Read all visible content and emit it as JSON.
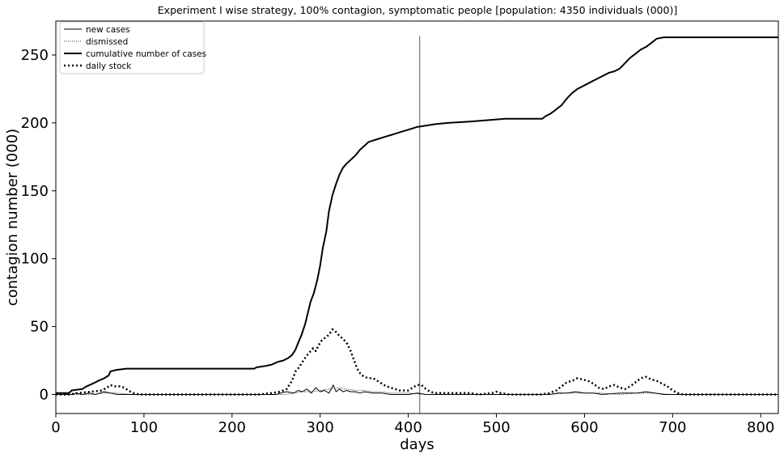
{
  "chart_data": {
    "type": "line",
    "title": "Experiment I wise strategy, 100% contagion, symptomatic people [population: 4350 individuals (000)]",
    "xlabel": "days",
    "ylabel": "contagion number (000)",
    "xlim": [
      0,
      820
    ],
    "ylim": [
      -14,
      275
    ],
    "xticks": [
      0,
      100,
      200,
      300,
      400,
      500,
      600,
      700,
      800
    ],
    "yticks": [
      0,
      50,
      100,
      150,
      200,
      250
    ],
    "grid": false,
    "legend_position": "top-left",
    "vline": {
      "x": 413,
      "y0": -14,
      "y1": 264
    },
    "series": [
      {
        "name": "cumulative number of cases",
        "style": "thick-solid",
        "points": [
          [
            0,
            1
          ],
          [
            15,
            1
          ],
          [
            18,
            3
          ],
          [
            30,
            4
          ],
          [
            35,
            6
          ],
          [
            42,
            8
          ],
          [
            48,
            10
          ],
          [
            55,
            12
          ],
          [
            60,
            14
          ],
          [
            62,
            17
          ],
          [
            68,
            18
          ],
          [
            80,
            19
          ],
          [
            100,
            19
          ],
          [
            150,
            19
          ],
          [
            200,
            19
          ],
          [
            225,
            19
          ],
          [
            228,
            20
          ],
          [
            238,
            21
          ],
          [
            245,
            22
          ],
          [
            252,
            24
          ],
          [
            258,
            25
          ],
          [
            264,
            27
          ],
          [
            268,
            29
          ],
          [
            272,
            33
          ],
          [
            275,
            38
          ],
          [
            279,
            44
          ],
          [
            283,
            52
          ],
          [
            286,
            60
          ],
          [
            289,
            68
          ],
          [
            293,
            75
          ],
          [
            297,
            85
          ],
          [
            300,
            95
          ],
          [
            303,
            108
          ],
          [
            307,
            120
          ],
          [
            310,
            135
          ],
          [
            314,
            147
          ],
          [
            318,
            155
          ],
          [
            322,
            162
          ],
          [
            326,
            167
          ],
          [
            330,
            170
          ],
          [
            335,
            173
          ],
          [
            340,
            176
          ],
          [
            345,
            180
          ],
          [
            350,
            183
          ],
          [
            355,
            186
          ],
          [
            360,
            187
          ],
          [
            365,
            188
          ],
          [
            370,
            189
          ],
          [
            375,
            190
          ],
          [
            380,
            191
          ],
          [
            385,
            192
          ],
          [
            390,
            193
          ],
          [
            395,
            194
          ],
          [
            400,
            195
          ],
          [
            405,
            196
          ],
          [
            410,
            197
          ],
          [
            420,
            198
          ],
          [
            430,
            199
          ],
          [
            445,
            200
          ],
          [
            470,
            201
          ],
          [
            490,
            202
          ],
          [
            510,
            203
          ],
          [
            540,
            203
          ],
          [
            552,
            203
          ],
          [
            556,
            205
          ],
          [
            562,
            207
          ],
          [
            568,
            210
          ],
          [
            574,
            213
          ],
          [
            580,
            218
          ],
          [
            586,
            222
          ],
          [
            592,
            225
          ],
          [
            598,
            227
          ],
          [
            604,
            229
          ],
          [
            610,
            231
          ],
          [
            616,
            233
          ],
          [
            622,
            235
          ],
          [
            628,
            237
          ],
          [
            634,
            238
          ],
          [
            640,
            240
          ],
          [
            646,
            244
          ],
          [
            652,
            248
          ],
          [
            658,
            251
          ],
          [
            664,
            254
          ],
          [
            670,
            256
          ],
          [
            676,
            259
          ],
          [
            682,
            262
          ],
          [
            690,
            263
          ],
          [
            700,
            263
          ],
          [
            750,
            263
          ],
          [
            820,
            263
          ]
        ]
      },
      {
        "name": "daily stock",
        "style": "thick-dotted",
        "points": [
          [
            0,
            0
          ],
          [
            15,
            0
          ],
          [
            25,
            1
          ],
          [
            40,
            2
          ],
          [
            52,
            3
          ],
          [
            58,
            5
          ],
          [
            62,
            7
          ],
          [
            66,
            6
          ],
          [
            72,
            6
          ],
          [
            78,
            5
          ],
          [
            82,
            3
          ],
          [
            88,
            1
          ],
          [
            95,
            0
          ],
          [
            150,
            0
          ],
          [
            230,
            0
          ],
          [
            245,
            1
          ],
          [
            255,
            2
          ],
          [
            262,
            4
          ],
          [
            268,
            10
          ],
          [
            272,
            17
          ],
          [
            276,
            20
          ],
          [
            280,
            24
          ],
          [
            284,
            28
          ],
          [
            288,
            31
          ],
          [
            292,
            34
          ],
          [
            295,
            32
          ],
          [
            298,
            36
          ],
          [
            302,
            40
          ],
          [
            306,
            42
          ],
          [
            310,
            44
          ],
          [
            314,
            48
          ],
          [
            318,
            46
          ],
          [
            322,
            43
          ],
          [
            326,
            41
          ],
          [
            330,
            38
          ],
          [
            334,
            33
          ],
          [
            338,
            26
          ],
          [
            342,
            19
          ],
          [
            346,
            15
          ],
          [
            350,
            13
          ],
          [
            355,
            12
          ],
          [
            360,
            12
          ],
          [
            365,
            10
          ],
          [
            370,
            8
          ],
          [
            375,
            6
          ],
          [
            380,
            5
          ],
          [
            385,
            4
          ],
          [
            390,
            3
          ],
          [
            395,
            3
          ],
          [
            400,
            3
          ],
          [
            405,
            5
          ],
          [
            410,
            7
          ],
          [
            415,
            7
          ],
          [
            420,
            4
          ],
          [
            425,
            2
          ],
          [
            430,
            1
          ],
          [
            450,
            1
          ],
          [
            470,
            1
          ],
          [
            480,
            0
          ],
          [
            495,
            1
          ],
          [
            500,
            2
          ],
          [
            505,
            1
          ],
          [
            515,
            0
          ],
          [
            550,
            0
          ],
          [
            560,
            1
          ],
          [
            568,
            3
          ],
          [
            574,
            6
          ],
          [
            580,
            9
          ],
          [
            586,
            10
          ],
          [
            592,
            12
          ],
          [
            598,
            11
          ],
          [
            604,
            10
          ],
          [
            610,
            8
          ],
          [
            616,
            5
          ],
          [
            622,
            4
          ],
          [
            628,
            6
          ],
          [
            634,
            7
          ],
          [
            640,
            5
          ],
          [
            646,
            4
          ],
          [
            652,
            6
          ],
          [
            658,
            9
          ],
          [
            664,
            12
          ],
          [
            670,
            13
          ],
          [
            676,
            11
          ],
          [
            682,
            10
          ],
          [
            688,
            8
          ],
          [
            694,
            6
          ],
          [
            700,
            3
          ],
          [
            706,
            1
          ],
          [
            712,
            0
          ],
          [
            820,
            0
          ]
        ]
      },
      {
        "name": "new cases",
        "style": "thin-solid",
        "points": [
          [
            0,
            0
          ],
          [
            20,
            0
          ],
          [
            22,
            1
          ],
          [
            30,
            0
          ],
          [
            38,
            1
          ],
          [
            45,
            0
          ],
          [
            55,
            2
          ],
          [
            62,
            1
          ],
          [
            70,
            0
          ],
          [
            250,
            0
          ],
          [
            255,
            1
          ],
          [
            262,
            2
          ],
          [
            270,
            1
          ],
          [
            275,
            3
          ],
          [
            280,
            2
          ],
          [
            285,
            4
          ],
          [
            290,
            1
          ],
          [
            295,
            5
          ],
          [
            300,
            2
          ],
          [
            305,
            3
          ],
          [
            310,
            1
          ],
          [
            315,
            7
          ],
          [
            318,
            2
          ],
          [
            322,
            4
          ],
          [
            326,
            2
          ],
          [
            330,
            3
          ],
          [
            335,
            2
          ],
          [
            340,
            2
          ],
          [
            345,
            1
          ],
          [
            350,
            2
          ],
          [
            360,
            1
          ],
          [
            370,
            1
          ],
          [
            380,
            0
          ],
          [
            400,
            0
          ],
          [
            410,
            1
          ],
          [
            420,
            0
          ],
          [
            560,
            0
          ],
          [
            570,
            1
          ],
          [
            580,
            1
          ],
          [
            590,
            2
          ],
          [
            600,
            1
          ],
          [
            610,
            1
          ],
          [
            620,
            0
          ],
          [
            640,
            1
          ],
          [
            660,
            1
          ],
          [
            670,
            2
          ],
          [
            680,
            1
          ],
          [
            690,
            0
          ],
          [
            820,
            0
          ]
        ]
      },
      {
        "name": "dismissed",
        "style": "thin-dotted",
        "points": [
          [
            0,
            0
          ],
          [
            40,
            0
          ],
          [
            55,
            1
          ],
          [
            70,
            1
          ],
          [
            85,
            0
          ],
          [
            260,
            0
          ],
          [
            270,
            1
          ],
          [
            280,
            2
          ],
          [
            290,
            2
          ],
          [
            300,
            3
          ],
          [
            310,
            4
          ],
          [
            320,
            5
          ],
          [
            330,
            4
          ],
          [
            340,
            3
          ],
          [
            350,
            3
          ],
          [
            360,
            2
          ],
          [
            370,
            2
          ],
          [
            380,
            1
          ],
          [
            400,
            1
          ],
          [
            420,
            0
          ],
          [
            560,
            0
          ],
          [
            580,
            1
          ],
          [
            600,
            1
          ],
          [
            620,
            1
          ],
          [
            640,
            0
          ],
          [
            660,
            1
          ],
          [
            680,
            1
          ],
          [
            700,
            0
          ],
          [
            820,
            0
          ]
        ]
      }
    ]
  }
}
